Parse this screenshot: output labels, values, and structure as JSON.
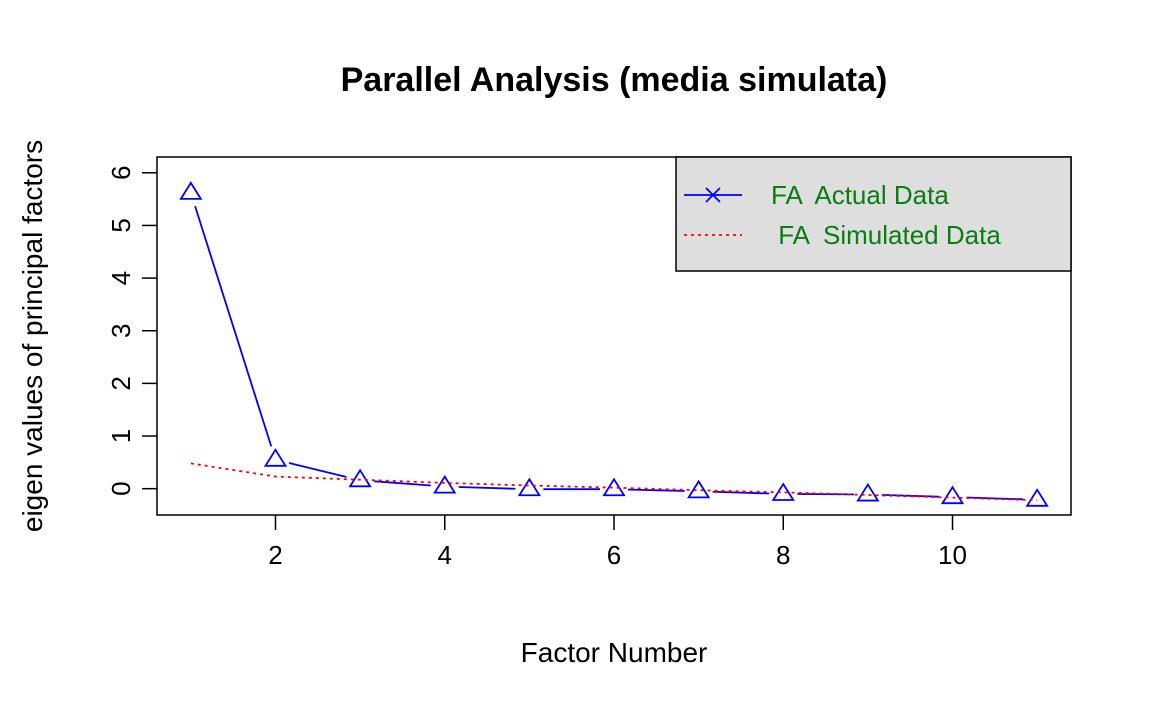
{
  "chart_data": {
    "type": "line",
    "title": "Parallel Analysis (media simulata)",
    "xlabel": "Factor Number",
    "ylabel": "eigen values of principal factors",
    "xlim": [
      0.6,
      11.4
    ],
    "ylim": [
      -0.5,
      6.3
    ],
    "xticks": [
      2,
      4,
      6,
      8,
      10
    ],
    "yticks": [
      0,
      1,
      2,
      3,
      4,
      5,
      6
    ],
    "x": [
      1,
      2,
      3,
      4,
      5,
      6,
      7,
      8,
      9,
      10,
      11
    ],
    "series": [
      {
        "name": "FA  Actual Data",
        "color": "#0000ff",
        "line": "solid",
        "marker": "triangle",
        "values": [
          5.62,
          0.55,
          0.16,
          0.04,
          -0.01,
          -0.01,
          -0.05,
          -0.1,
          -0.11,
          -0.16,
          -0.21
        ]
      },
      {
        "name": " FA  Simulated Data",
        "color": "#ff0000",
        "line": "dotted",
        "marker": "none",
        "values": [
          0.48,
          0.23,
          0.17,
          0.11,
          0.06,
          0.02,
          -0.03,
          -0.07,
          -0.12,
          -0.17,
          -0.22
        ]
      }
    ],
    "legend": {
      "position": "top-right",
      "background": "#dedede",
      "text_color": "#0a7d12",
      "actual_marker": "x"
    },
    "grid": false
  }
}
